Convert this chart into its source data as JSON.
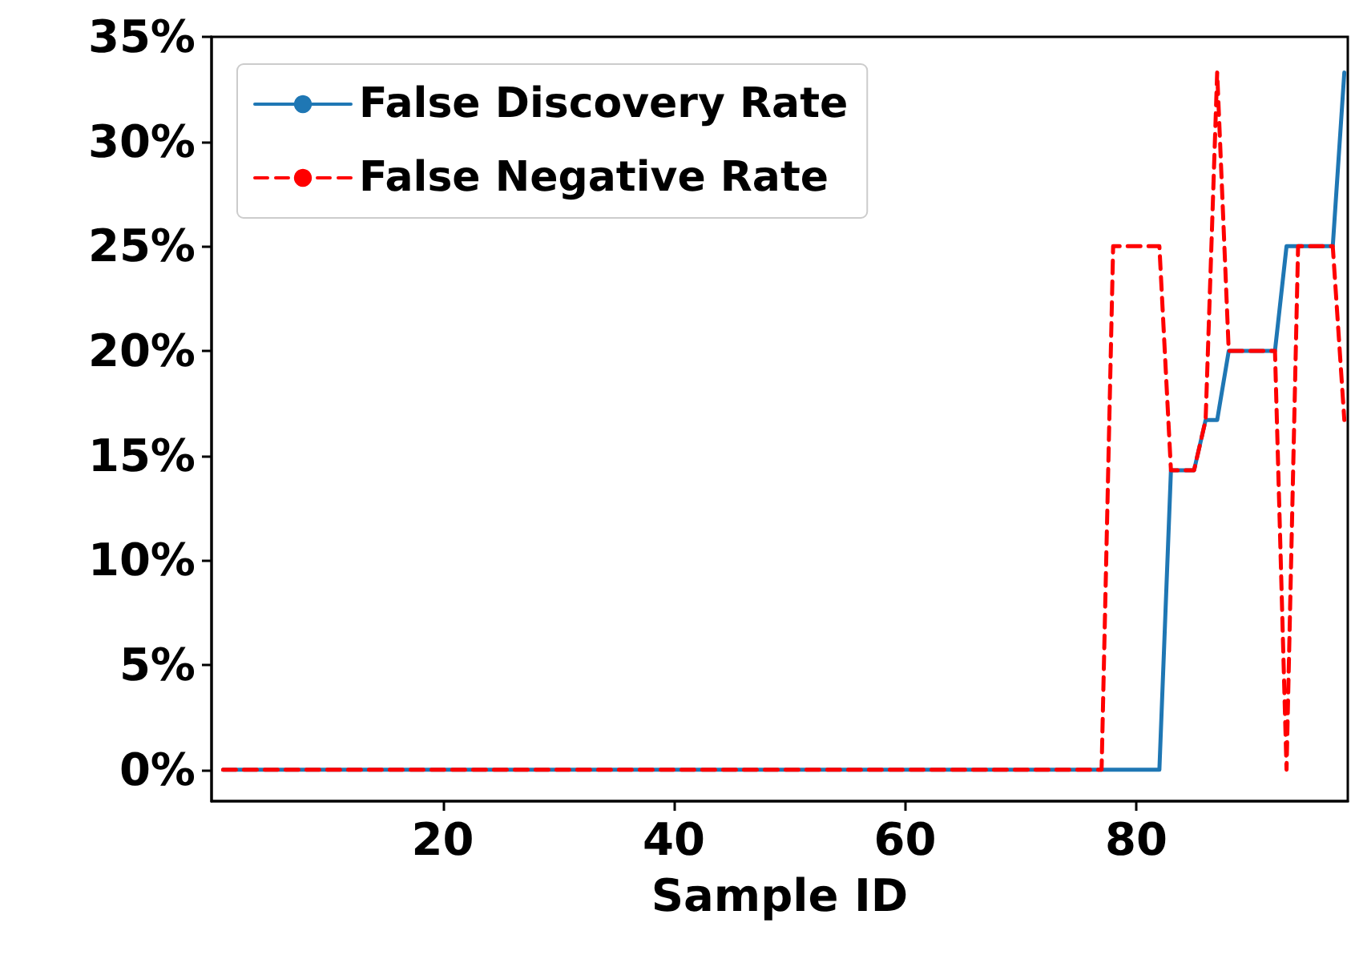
{
  "chart_data": {
    "type": "line",
    "xlabel": "Sample ID",
    "xlim": [
      0,
      98.3
    ],
    "xticks": [
      20,
      40,
      60,
      80
    ],
    "ylim": [
      -1.5,
      35
    ],
    "yticks": [
      {
        "value": 0,
        "label": "0%"
      },
      {
        "value": 5,
        "label": "5%"
      },
      {
        "value": 10,
        "label": "10%"
      },
      {
        "value": 15,
        "label": "15%"
      },
      {
        "value": 20,
        "label": "20%"
      },
      {
        "value": 25,
        "label": "25%"
      },
      {
        "value": 30,
        "label": "30%"
      },
      {
        "value": 35,
        "label": "35%"
      }
    ],
    "grid": false,
    "legend": "top left",
    "marker": "none",
    "series": [
      {
        "name": "False Discovery Rate",
        "color": "#1f77b4",
        "line_style": "solid",
        "x": [
          1,
          82,
          83,
          85,
          86,
          87,
          88,
          92,
          93,
          97,
          98
        ],
        "values": [
          0,
          0,
          14.3,
          14.3,
          16.7,
          16.7,
          20,
          20,
          25,
          25,
          33.3
        ]
      },
      {
        "name": "False Negative Rate",
        "color": "#ff0000",
        "line_style": "dashed",
        "x": [
          1,
          77,
          78,
          82,
          83,
          85,
          86,
          87,
          88,
          92,
          93,
          94,
          97,
          98
        ],
        "values": [
          0,
          0,
          25,
          25,
          14.3,
          14.3,
          16.7,
          33.3,
          20,
          20,
          0,
          25,
          25,
          16.7
        ]
      }
    ]
  }
}
